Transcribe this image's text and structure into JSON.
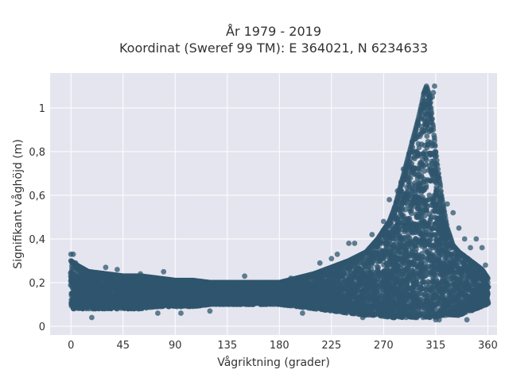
{
  "chart_data": {
    "type": "scatter",
    "title": "År 1979 - 2019",
    "subtitle": "Koordinat (Sweref 99 TM): E 364021, N 6234633",
    "xlabel": "Vågriktning (grader)",
    "ylabel": "Signifikant våghöjd (m)",
    "xlim": [
      -18,
      368
    ],
    "ylim": [
      -0.04,
      1.16
    ],
    "x_ticks": [
      0,
      45,
      90,
      135,
      180,
      225,
      270,
      315,
      360
    ],
    "x_tick_labels": [
      "0",
      "45",
      "90",
      "135",
      "180",
      "225",
      "270",
      "315",
      "360"
    ],
    "y_ticks": [
      0,
      0.2,
      0.4,
      0.6,
      0.8,
      1.0
    ],
    "y_tick_labels": [
      "0",
      "0,2",
      "0,4",
      "0,6",
      "0,8",
      "1"
    ],
    "grid": true,
    "marker_color": "#2f566e",
    "background_color": "#e5e5ef",
    "series": [
      {
        "envelope": {
          "x": [
            0,
            5,
            15,
            30,
            45,
            60,
            75,
            90,
            105,
            120,
            135,
            150,
            165,
            180,
            195,
            210,
            225,
            240,
            255,
            265,
            275,
            280,
            285,
            290,
            295,
            300,
            303,
            305,
            307,
            310,
            313,
            315,
            320,
            325,
            330,
            335,
            340,
            345,
            350,
            355,
            360
          ],
          "upper": [
            0.3,
            0.28,
            0.25,
            0.24,
            0.23,
            0.23,
            0.22,
            0.21,
            0.21,
            0.2,
            0.2,
            0.2,
            0.2,
            0.2,
            0.22,
            0.24,
            0.27,
            0.3,
            0.34,
            0.4,
            0.48,
            0.55,
            0.65,
            0.75,
            0.85,
            0.95,
            1.02,
            1.07,
            1.1,
            1.05,
            0.9,
            0.8,
            0.6,
            0.45,
            0.37,
            0.34,
            0.32,
            0.3,
            0.28,
            0.26,
            0.22
          ],
          "lower": [
            0.08,
            0.08,
            0.08,
            0.08,
            0.08,
            0.08,
            0.09,
            0.09,
            0.09,
            0.1,
            0.1,
            0.1,
            0.1,
            0.1,
            0.09,
            0.08,
            0.07,
            0.06,
            0.05,
            0.05,
            0.04,
            0.04,
            0.04,
            0.04,
            0.04,
            0.04,
            0.04,
            0.04,
            0.04,
            0.04,
            0.04,
            0.04,
            0.05,
            0.05,
            0.05,
            0.05,
            0.06,
            0.07,
            0.08,
            0.09,
            0.1
          ]
        },
        "points": [
          [
            0,
            0.33
          ],
          [
            2,
            0.33
          ],
          [
            4,
            0.29
          ],
          [
            8,
            0.27
          ],
          [
            18,
            0.04
          ],
          [
            30,
            0.27
          ],
          [
            40,
            0.26
          ],
          [
            60,
            0.24
          ],
          [
            75,
            0.06
          ],
          [
            80,
            0.25
          ],
          [
            95,
            0.06
          ],
          [
            120,
            0.07
          ],
          [
            150,
            0.23
          ],
          [
            190,
            0.22
          ],
          [
            200,
            0.06
          ],
          [
            215,
            0.29
          ],
          [
            225,
            0.31
          ],
          [
            230,
            0.33
          ],
          [
            240,
            0.38
          ],
          [
            245,
            0.38
          ],
          [
            252,
            0.04
          ],
          [
            260,
            0.42
          ],
          [
            270,
            0.48
          ],
          [
            275,
            0.58
          ],
          [
            277,
            0.5
          ],
          [
            282,
            0.62
          ],
          [
            285,
            0.66
          ],
          [
            287,
            0.72
          ],
          [
            290,
            0.74
          ],
          [
            292,
            0.79
          ],
          [
            295,
            0.82
          ],
          [
            298,
            0.86
          ],
          [
            300,
            0.88
          ],
          [
            305,
            0.95
          ],
          [
            309,
            1.0
          ],
          [
            310,
            1.02
          ],
          [
            312,
            1.05
          ],
          [
            313,
            1.07
          ],
          [
            314,
            1.1
          ],
          [
            315,
            0.03
          ],
          [
            318,
            0.03
          ],
          [
            325,
            0.56
          ],
          [
            330,
            0.52
          ],
          [
            335,
            0.45
          ],
          [
            340,
            0.4
          ],
          [
            342,
            0.03
          ],
          [
            345,
            0.36
          ],
          [
            350,
            0.4
          ],
          [
            355,
            0.36
          ],
          [
            358,
            0.28
          ],
          [
            360,
            0.2
          ]
        ]
      }
    ]
  }
}
